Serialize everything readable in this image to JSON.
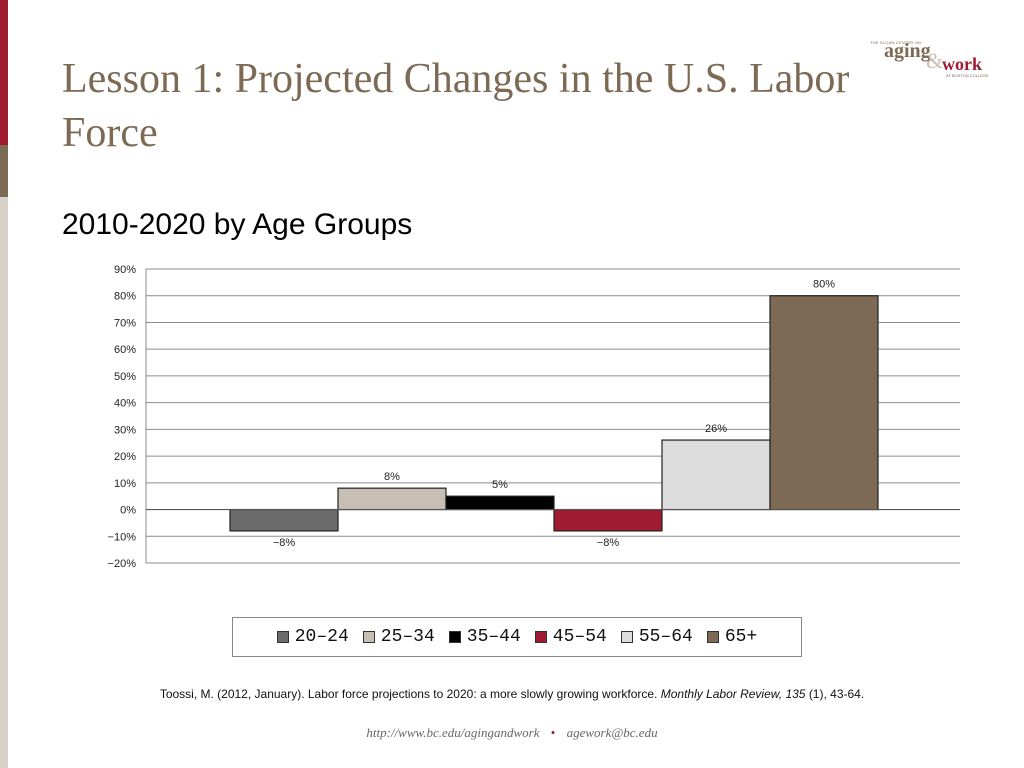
{
  "slide": {
    "title": "Lesson 1: Projected Changes in the U.S. Labor Force",
    "subtitle": "2010-2020 by Age Groups",
    "logo": {
      "small_top": "THE SLOAN CENTER ON",
      "aging": "aging",
      "amp": "&",
      "work": "work",
      "small_bottom": "AT BOSTON COLLEGE"
    },
    "citation": {
      "text": "Toossi, M. (2012, January).  Labor force projections to 2020: a more slowly growing workforce.",
      "journal": "Monthly Labor Review, 135",
      "tail": "(1), 43-64."
    },
    "footer": {
      "url": "http://www.bc.edu/agingandwork",
      "email": "agework@bc.edu"
    },
    "accent_colors": {
      "red": "#9e1b32",
      "brown": "#7d6a55",
      "grey": "#d8d2c9"
    }
  },
  "chart_data": {
    "type": "bar",
    "title": "",
    "xlabel": "",
    "ylabel": "",
    "ylim": [
      -20,
      90
    ],
    "yticks": [
      90,
      80,
      70,
      60,
      50,
      40,
      30,
      20,
      10,
      0,
      -10,
      -20
    ],
    "ytick_labels": [
      "90%",
      "80%",
      "70%",
      "60%",
      "50%",
      "40%",
      "30%",
      "20%",
      "10%",
      "0%",
      "−10%",
      "−20%"
    ],
    "categories": [
      "20–24",
      "25–34",
      "35–44",
      "45–54",
      "55–64",
      "65+"
    ],
    "values": [
      -8,
      8,
      5,
      -8,
      26,
      80
    ],
    "data_labels": [
      "−8%",
      "8%",
      "5%",
      "−8%",
      "26%",
      "80%"
    ],
    "colors": [
      "#6b6b6b",
      "#c8bfb4",
      "#000000",
      "#9e1b32",
      "#dcdcdc",
      "#7d6a55"
    ],
    "grid": true,
    "legend_position": "bottom"
  }
}
